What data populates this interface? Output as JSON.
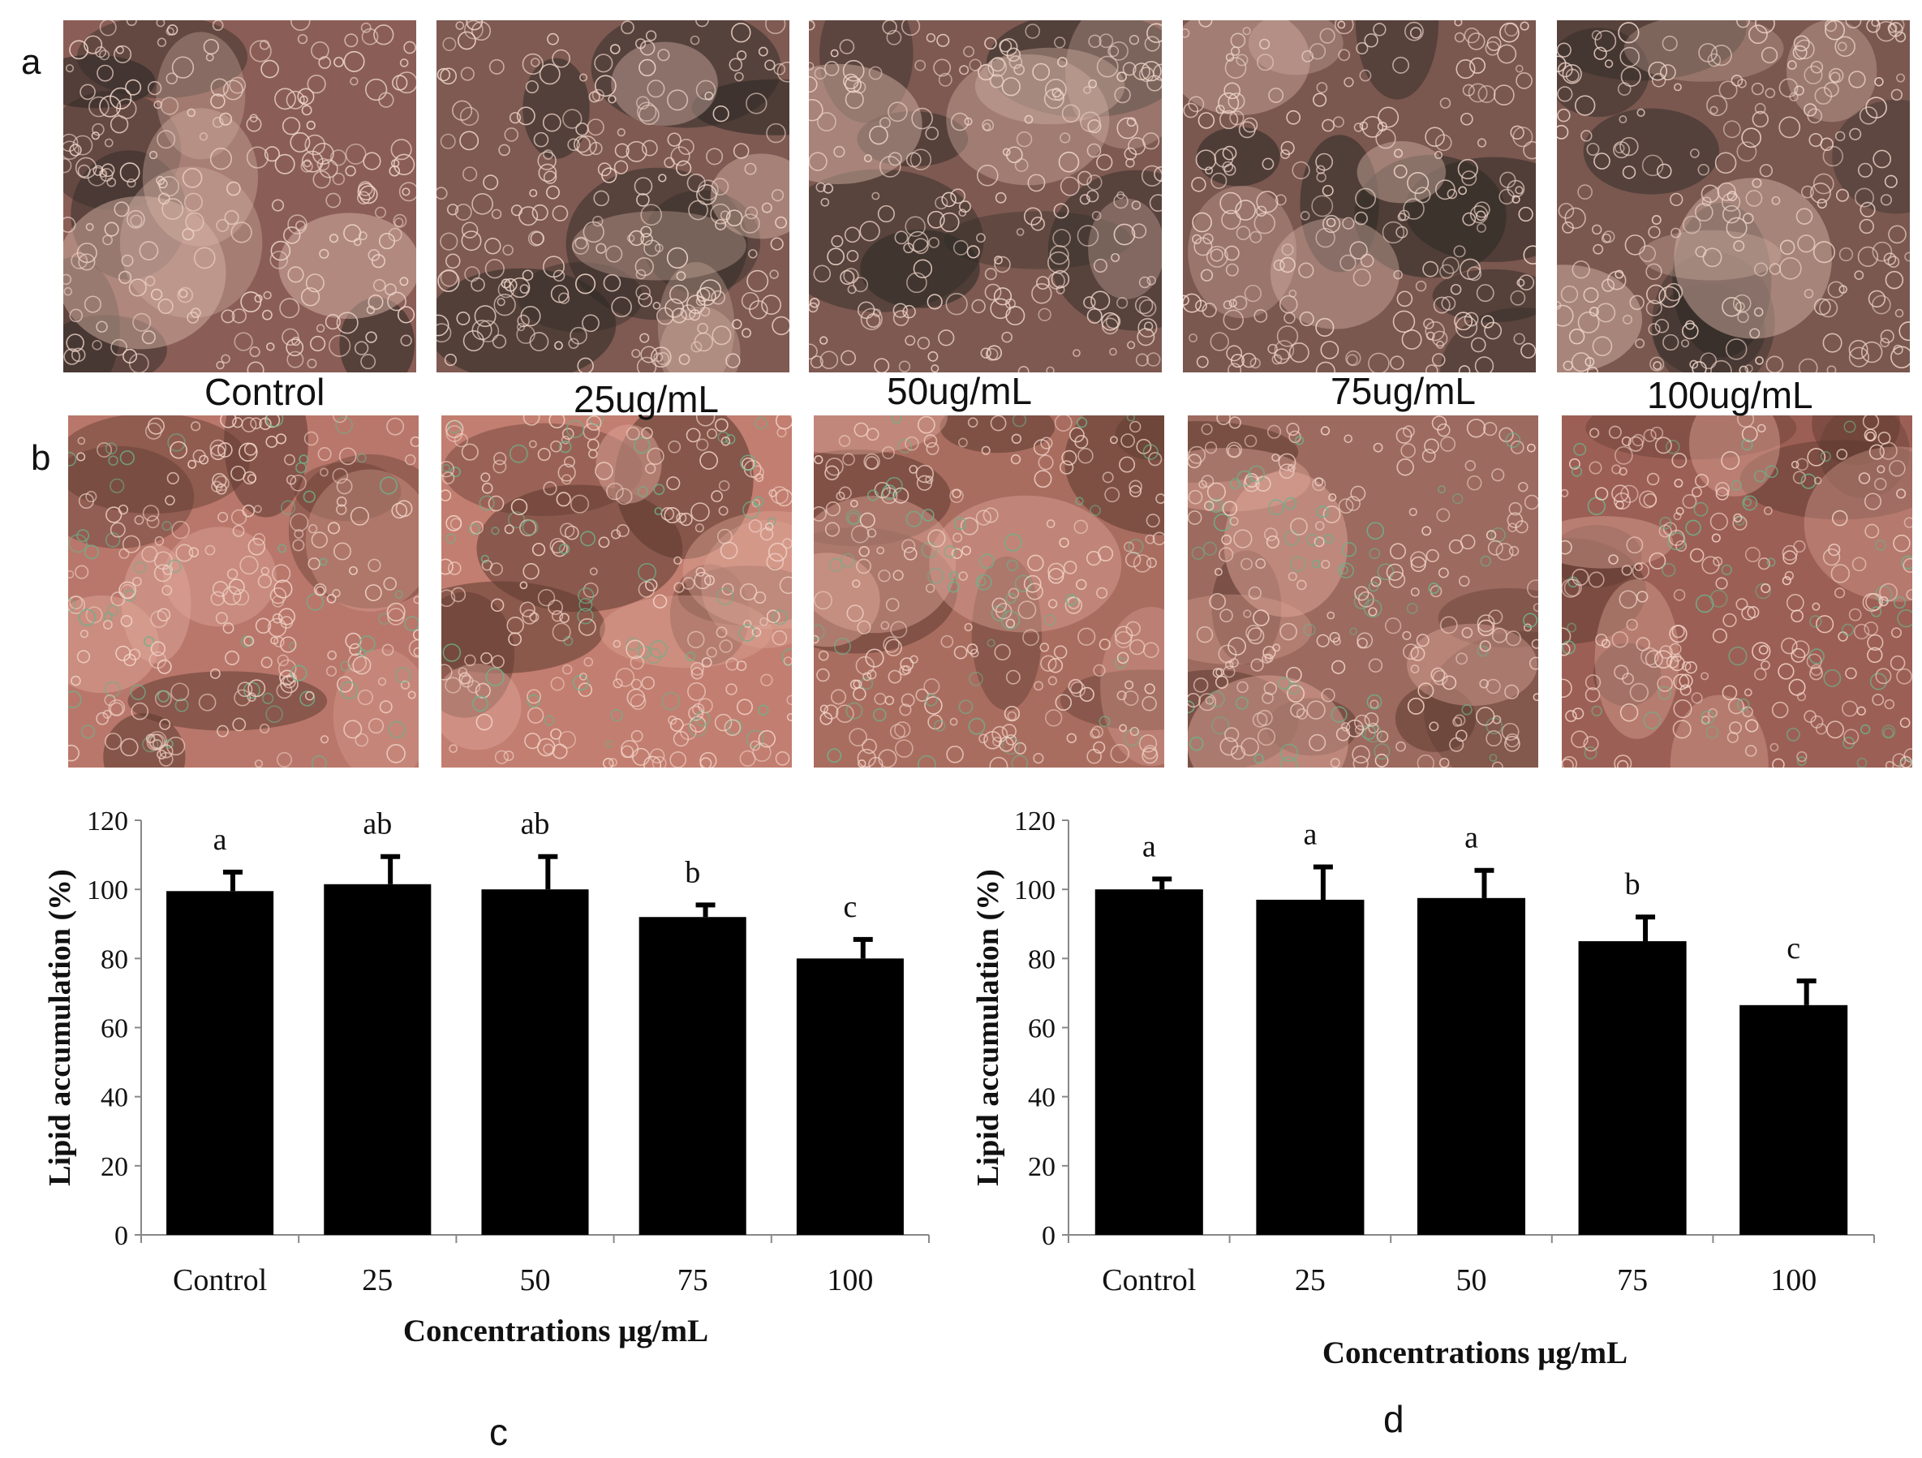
{
  "row_labels": {
    "a": "a",
    "b": "b"
  },
  "micrographs": {
    "row_a": [
      {
        "caption": "Control",
        "tone": "#8a5e56"
      },
      {
        "caption": "25ug/mL",
        "tone": "#7e5a52"
      },
      {
        "caption": "50ug/mL",
        "tone": "#7d5951"
      },
      {
        "caption": "75ug/mL",
        "tone": "#7a574f"
      },
      {
        "caption": "100ug/mL",
        "tone": "#7a5850"
      }
    ],
    "row_b": [
      {
        "tone": "#b9776b"
      },
      {
        "tone": "#c27e70"
      },
      {
        "tone": "#a96d60"
      },
      {
        "tone": "#9c6a5f"
      },
      {
        "tone": "#9c5f55"
      }
    ]
  },
  "panel_labels": {
    "c": "c",
    "d": "d"
  },
  "chart_data": [
    {
      "panel": "c",
      "type": "bar",
      "categories": [
        "Control",
        "25",
        "50",
        "75",
        "100"
      ],
      "values": [
        99.5,
        101.5,
        100,
        92,
        80
      ],
      "errors": [
        5.5,
        8,
        9.5,
        3.5,
        5.5
      ],
      "significance": [
        "a",
        "ab",
        "ab",
        "b",
        "c"
      ],
      "xlabel": "Concentrations μg/mL",
      "ylabel": "Lipid accumulation (%)",
      "ylim": [
        0,
        120
      ],
      "yticks": [
        0,
        20,
        40,
        60,
        80,
        100,
        120
      ],
      "bar_color": "#000000",
      "grid": false
    },
    {
      "panel": "d",
      "type": "bar",
      "categories": [
        "Control",
        "25",
        "50",
        "75",
        "100"
      ],
      "values": [
        100,
        97,
        97.5,
        85,
        66.5
      ],
      "errors": [
        3,
        9.5,
        8,
        7,
        7
      ],
      "significance": [
        "a",
        "a",
        "a",
        "b",
        "c"
      ],
      "xlabel": "Concentrations μg/mL",
      "ylabel": "Lipid accumulation (%)",
      "ylim": [
        0,
        120
      ],
      "yticks": [
        0,
        20,
        40,
        60,
        80,
        100,
        120
      ],
      "bar_color": "#000000",
      "grid": false
    }
  ]
}
